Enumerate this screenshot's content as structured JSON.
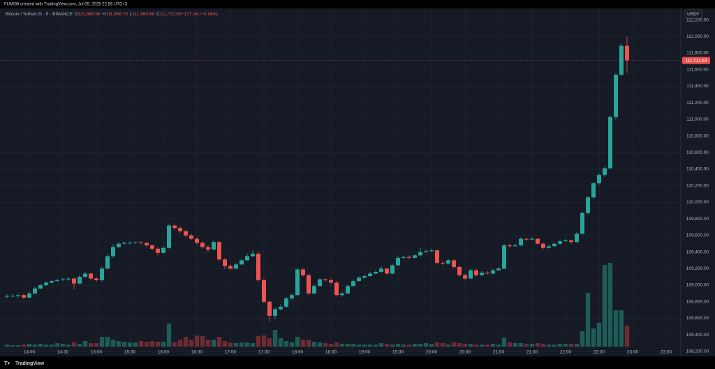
{
  "chart_data": {
    "type": "candlestick",
    "header": "FUMI98 created with TradingView.com, Jul 09, 2025 22:56 UTC+3",
    "title": "Bitcoin / TetherUS · 5 · BINANCE",
    "info": [
      {
        "key": "O",
        "text": "111,888.98"
      },
      {
        "key": "H",
        "text": "111,998.79"
      },
      {
        "key": "L",
        "text": "111,560.69"
      },
      {
        "key": "C",
        "text": "111,711.63"
      },
      {
        "key": "",
        "text": "−177.34 (−0.16%)"
      }
    ],
    "currency": "USDT",
    "brand": "TradingView",
    "last_price": {
      "value": 111711.63,
      "label": "111,711.63"
    },
    "up_color": "#26a69a",
    "down_color": "#ef5350",
    "volume_up_color": "#1d5c57",
    "volume_down_color": "#6e2b30",
    "grid": true,
    "ylim": [
      108140,
      112340
    ],
    "yticks": [
      {
        "value": 108200,
        "label": "108,200.00"
      },
      {
        "value": 108400,
        "label": "108,400.00"
      },
      {
        "value": 108600,
        "label": "108,600.00"
      },
      {
        "value": 108800,
        "label": "108,800.00"
      },
      {
        "value": 109000,
        "label": "109,000.00"
      },
      {
        "value": 109200,
        "label": "109,200.00"
      },
      {
        "value": 109400,
        "label": "109,400.00"
      },
      {
        "value": 109600,
        "label": "109,600.00"
      },
      {
        "value": 109800,
        "label": "109,800.00"
      },
      {
        "value": 110000,
        "label": "110,000.00"
      },
      {
        "value": 110200,
        "label": "110,200.00"
      },
      {
        "value": 110400,
        "label": "110,400.00"
      },
      {
        "value": 110600,
        "label": "110,600.00"
      },
      {
        "value": 110800,
        "label": "110,800.00"
      },
      {
        "value": 111000,
        "label": "111,000.00"
      },
      {
        "value": 111200,
        "label": "111,200.00"
      },
      {
        "value": 111400,
        "label": "111,400.00"
      },
      {
        "value": 111600,
        "label": "111,600.00"
      },
      {
        "value": 111800,
        "label": "111,800.00"
      },
      {
        "value": 112000,
        "label": "112,000.00"
      },
      {
        "value": 112200,
        "label": "112,200.00"
      }
    ],
    "xticks": [
      "14:00",
      "14:30",
      "15:00",
      "15:30",
      "16:00",
      "16:30",
      "17:00",
      "17:30",
      "18:00",
      "18:30",
      "19:00",
      "19:30",
      "20:00",
      "20:30",
      "21:00",
      "21:30",
      "22:00",
      "22:30",
      "23:00",
      "23:30"
    ],
    "x": [
      "13:40",
      "13:45",
      "13:50",
      "13:55",
      "14:00",
      "14:05",
      "14:10",
      "14:15",
      "14:20",
      "14:25",
      "14:30",
      "14:35",
      "14:40",
      "14:45",
      "14:50",
      "14:55",
      "15:00",
      "15:05",
      "15:10",
      "15:15",
      "15:20",
      "15:25",
      "15:30",
      "15:35",
      "15:40",
      "15:45",
      "15:50",
      "15:55",
      "16:00",
      "16:05",
      "16:10",
      "16:15",
      "16:20",
      "16:25",
      "16:30",
      "16:35",
      "16:40",
      "16:45",
      "16:50",
      "16:55",
      "17:00",
      "17:05",
      "17:10",
      "17:15",
      "17:20",
      "17:25",
      "17:30",
      "17:35",
      "17:40",
      "17:45",
      "17:50",
      "17:55",
      "18:00",
      "18:05",
      "18:10",
      "18:15",
      "18:20",
      "18:25",
      "18:30",
      "18:35",
      "18:40",
      "18:45",
      "18:50",
      "18:55",
      "19:00",
      "19:05",
      "19:10",
      "19:15",
      "19:20",
      "19:25",
      "19:30",
      "19:35",
      "19:40",
      "19:45",
      "19:50",
      "19:55",
      "20:00",
      "20:05",
      "20:10",
      "20:15",
      "20:20",
      "20:25",
      "20:30",
      "20:35",
      "20:40",
      "20:45",
      "20:50",
      "20:55",
      "21:00",
      "21:05",
      "21:10",
      "21:15",
      "21:20",
      "21:25",
      "21:30",
      "21:35",
      "21:40",
      "21:45",
      "21:50",
      "21:55",
      "22:00",
      "22:05",
      "22:10",
      "22:15",
      "22:20",
      "22:25",
      "22:30",
      "22:35",
      "22:40",
      "22:45",
      "22:50",
      "22:55"
    ],
    "candles": [
      [
        108860,
        108890,
        108840,
        108870
      ],
      [
        108870,
        108890,
        108850,
        108870
      ],
      [
        108870,
        108900,
        108850,
        108880
      ],
      [
        108880,
        108900,
        108830,
        108850
      ],
      [
        108850,
        108920,
        108840,
        108900
      ],
      [
        108900,
        108980,
        108890,
        108960
      ],
      [
        108960,
        109020,
        108950,
        109000
      ],
      [
        109000,
        109050,
        108990,
        109030
      ],
      [
        109030,
        109070,
        109020,
        109050
      ],
      [
        109050,
        109080,
        109040,
        109060
      ],
      [
        109060,
        109090,
        109050,
        109070
      ],
      [
        109070,
        109100,
        109050,
        109080
      ],
      [
        109080,
        109090,
        108950,
        109020
      ],
      [
        109020,
        109120,
        109010,
        109100
      ],
      [
        109100,
        109160,
        109090,
        109140
      ],
      [
        109140,
        109150,
        109060,
        109080
      ],
      [
        109080,
        109100,
        109040,
        109060
      ],
      [
        109060,
        109230,
        109040,
        109200
      ],
      [
        109200,
        109380,
        109190,
        109350
      ],
      [
        109350,
        109490,
        109330,
        109460
      ],
      [
        109460,
        109520,
        109450,
        109500
      ],
      [
        109500,
        109530,
        109490,
        109510
      ],
      [
        109510,
        109530,
        109490,
        109510
      ],
      [
        109510,
        109530,
        109500,
        109515
      ],
      [
        109515,
        109530,
        109490,
        109510
      ],
      [
        109510,
        109520,
        109460,
        109480
      ],
      [
        109480,
        109490,
        109420,
        109440
      ],
      [
        109440,
        109460,
        109360,
        109390
      ],
      [
        109390,
        109470,
        109380,
        109450
      ],
      [
        109450,
        109740,
        109440,
        109720
      ],
      [
        109720,
        109740,
        109670,
        109690
      ],
      [
        109690,
        109710,
        109630,
        109650
      ],
      [
        109650,
        109670,
        109580,
        109600
      ],
      [
        109600,
        109620,
        109540,
        109560
      ],
      [
        109560,
        109580,
        109490,
        109510
      ],
      [
        109510,
        109530,
        109440,
        109460
      ],
      [
        109460,
        109480,
        109400,
        109430
      ],
      [
        109430,
        109540,
        109420,
        109520
      ],
      [
        109520,
        109530,
        109290,
        109310
      ],
      [
        109310,
        109330,
        109200,
        109230
      ],
      [
        109230,
        109250,
        109180,
        109200
      ],
      [
        109200,
        109270,
        109190,
        109250
      ],
      [
        109250,
        109320,
        109240,
        109300
      ],
      [
        109300,
        109380,
        109290,
        109350
      ],
      [
        109350,
        109420,
        109340,
        109380
      ],
      [
        109380,
        109400,
        109040,
        109060
      ],
      [
        109060,
        109080,
        108780,
        108800
      ],
      [
        108800,
        108820,
        108560,
        108630
      ],
      [
        108630,
        108730,
        108590,
        108710
      ],
      [
        108710,
        108770,
        108690,
        108740
      ],
      [
        108740,
        108860,
        108720,
        108840
      ],
      [
        108840,
        108900,
        108820,
        108880
      ],
      [
        108880,
        109210,
        108870,
        109190
      ],
      [
        109190,
        109200,
        109100,
        109120
      ],
      [
        109120,
        109140,
        108880,
        108900
      ],
      [
        108900,
        109010,
        108890,
        108990
      ],
      [
        108990,
        109090,
        108980,
        109070
      ],
      [
        109070,
        109080,
        109040,
        109060
      ],
      [
        109060,
        109080,
        109010,
        109030
      ],
      [
        109030,
        109050,
        108860,
        108880
      ],
      [
        108880,
        108920,
        108860,
        108900
      ],
      [
        108900,
        109010,
        108890,
        108990
      ],
      [
        108990,
        109070,
        108980,
        109050
      ],
      [
        109050,
        109110,
        109040,
        109090
      ],
      [
        109090,
        109130,
        109080,
        109110
      ],
      [
        109110,
        109160,
        109100,
        109140
      ],
      [
        109140,
        109180,
        109130,
        109160
      ],
      [
        109160,
        109230,
        109150,
        109200
      ],
      [
        109200,
        109210,
        109120,
        109140
      ],
      [
        109140,
        109260,
        109130,
        109240
      ],
      [
        109240,
        109350,
        109230,
        109330
      ],
      [
        109330,
        109360,
        109320,
        109340
      ],
      [
        109340,
        109360,
        109310,
        109330
      ],
      [
        109330,
        109380,
        109320,
        109360
      ],
      [
        109360,
        109450,
        109350,
        109400
      ],
      [
        109400,
        109430,
        109390,
        109410
      ],
      [
        109410,
        109440,
        109400,
        109420
      ],
      [
        109420,
        109430,
        109250,
        109270
      ],
      [
        109270,
        109290,
        109240,
        109260
      ],
      [
        109260,
        109320,
        109250,
        109300
      ],
      [
        109300,
        109310,
        109200,
        109220
      ],
      [
        109220,
        109240,
        109100,
        109120
      ],
      [
        109120,
        109140,
        109060,
        109080
      ],
      [
        109080,
        109200,
        109070,
        109180
      ],
      [
        109180,
        109190,
        109100,
        109120
      ],
      [
        109120,
        109170,
        109110,
        109150
      ],
      [
        109150,
        109170,
        109130,
        109140
      ],
      [
        109140,
        109190,
        109130,
        109180
      ],
      [
        109180,
        109220,
        109170,
        109200
      ],
      [
        109200,
        109500,
        109190,
        109480
      ],
      [
        109480,
        109500,
        109450,
        109470
      ],
      [
        109470,
        109500,
        109460,
        109480
      ],
      [
        109480,
        109580,
        109470,
        109560
      ],
      [
        109560,
        109570,
        109530,
        109550
      ],
      [
        109550,
        109580,
        109540,
        109560
      ],
      [
        109560,
        109570,
        109490,
        109500
      ],
      [
        109500,
        109510,
        109430,
        109450
      ],
      [
        109450,
        109490,
        109440,
        109470
      ],
      [
        109470,
        109520,
        109460,
        109500
      ],
      [
        109500,
        109550,
        109490,
        109530
      ],
      [
        109530,
        109560,
        109520,
        109540
      ],
      [
        109540,
        109550,
        109500,
        109520
      ],
      [
        109520,
        109640,
        109510,
        109620
      ],
      [
        109620,
        109890,
        109610,
        109870
      ],
      [
        109870,
        110080,
        109850,
        110060
      ],
      [
        110060,
        110250,
        110040,
        110230
      ],
      [
        110230,
        110350,
        110210,
        110330
      ],
      [
        110330,
        110430,
        110310,
        110410
      ],
      [
        110410,
        111050,
        110400,
        111030
      ],
      [
        111030,
        111560,
        111000,
        111540
      ],
      [
        111540,
        111920,
        111520,
        111888.98
      ],
      [
        111888.98,
        111998.79,
        111560.69,
        111711.63
      ]
    ],
    "volumes": [
      3,
      2,
      2,
      3,
      4,
      3,
      4,
      3,
      3,
      5,
      4,
      3,
      6,
      4,
      8,
      5,
      5,
      14,
      14,
      10,
      8,
      7,
      6,
      6,
      8,
      7,
      8,
      7,
      7,
      33,
      6,
      10,
      14,
      10,
      16,
      15,
      10,
      10,
      14,
      8,
      6,
      5,
      6,
      6,
      5,
      15,
      16,
      12,
      24,
      12,
      8,
      6,
      14,
      10,
      10,
      7,
      6,
      5,
      4,
      6,
      4,
      4,
      4,
      3,
      3,
      3,
      3,
      5,
      4,
      3,
      4,
      3,
      3,
      4,
      4,
      5,
      4,
      6,
      5,
      3,
      6,
      5,
      4,
      4,
      3,
      3,
      3,
      4,
      3,
      13,
      6,
      5,
      5,
      4,
      4,
      5,
      4,
      3,
      3,
      4,
      4,
      4,
      4,
      22,
      77,
      26,
      34,
      117,
      120,
      52,
      52,
      30
    ]
  }
}
